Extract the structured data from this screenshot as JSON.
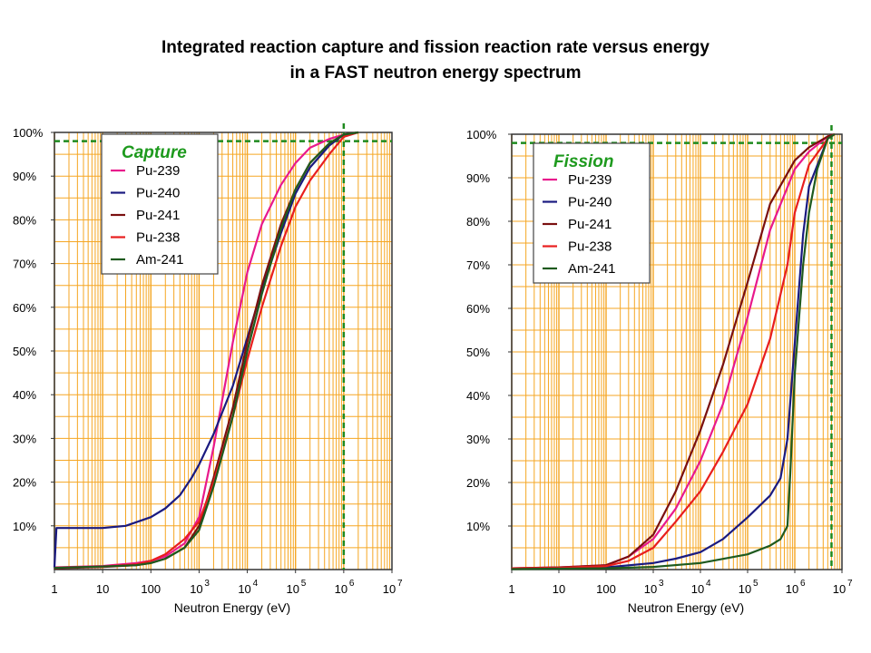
{
  "page": {
    "title_line1": "Integrated reaction capture and fission reaction rate versus energy",
    "title_line2": "in a FAST neutron energy spectrum"
  },
  "colors": {
    "Pu-239": "#e8198c",
    "Pu-240": "#1a1a80",
    "Pu-241": "#7a1010",
    "Pu-238": "#e81e1e",
    "Am-241": "#1e5a1e",
    "grid": "#f5a623",
    "marker": "#1e8a1e"
  },
  "chart_data": [
    {
      "type": "line",
      "legend_title": "Capture",
      "xlabel": "Neutron Energy (eV)",
      "xscale": "log",
      "xlim": [
        1,
        10000000
      ],
      "ylim": [
        0,
        100
      ],
      "yunit": "%",
      "x_tick_labels": [
        "1",
        "10",
        "100",
        "10",
        "10",
        "10",
        "10",
        "10"
      ],
      "x_tick_exponents": [
        "",
        "",
        "",
        "3",
        "4",
        "5",
        "6",
        "7"
      ],
      "y_tick_labels": [
        "10%",
        "20%",
        "30%",
        "40%",
        "50%",
        "60%",
        "70%",
        "80%",
        "90%",
        "100%"
      ],
      "legend_position": "top-left",
      "reference_lines": {
        "y": 98,
        "x": 1000000
      },
      "series": [
        {
          "name": "Pu-239",
          "x": [
            1,
            10,
            50,
            100,
            200,
            500,
            1000,
            2000,
            5000,
            10000,
            20000,
            50000,
            100000,
            200000,
            500000,
            1000000,
            2000000
          ],
          "y": [
            0.5,
            0.8,
            1.5,
            2,
            3,
            6,
            12,
            28,
            52,
            68,
            79,
            88,
            93,
            96.5,
            98.5,
            99.5,
            100
          ]
        },
        {
          "name": "Pu-240",
          "x": [
            1,
            1.1,
            10,
            30,
            100,
            200,
            400,
            700,
            1000,
            2000,
            5000,
            10000,
            20000,
            50000,
            100000,
            200000,
            500000,
            1000000,
            2000000
          ],
          "y": [
            0.5,
            9.5,
            9.5,
            10,
            12,
            14,
            17,
            21,
            24,
            31,
            42,
            53,
            64,
            77,
            86,
            92,
            97,
            99.5,
            100
          ]
        },
        {
          "name": "Pu-241",
          "x": [
            1,
            10,
            50,
            100,
            200,
            500,
            1000,
            2000,
            5000,
            10000,
            20000,
            50000,
            100000,
            200000,
            500000,
            1000000,
            2000000
          ],
          "y": [
            0.3,
            0.6,
            1,
            1.5,
            2.5,
            5,
            10,
            21,
            37,
            52,
            65,
            79,
            87,
            93,
            97.5,
            99.5,
            100
          ]
        },
        {
          "name": "Pu-238",
          "x": [
            1,
            10,
            50,
            100,
            200,
            500,
            1000,
            2000,
            5000,
            10000,
            20000,
            50000,
            100000,
            200000,
            500000,
            1000000,
            2000000
          ],
          "y": [
            0.4,
            0.7,
            1.2,
            2,
            3.5,
            7,
            11,
            20,
            35,
            48,
            60,
            74,
            83,
            89,
            95,
            99,
            100
          ]
        },
        {
          "name": "Am-241",
          "x": [
            1,
            10,
            50,
            100,
            200,
            500,
            1000,
            2000,
            5000,
            10000,
            20000,
            50000,
            100000,
            200000,
            500000,
            1000000,
            2000000
          ],
          "y": [
            0.4,
            0.7,
            1,
            1.5,
            2.5,
            5,
            9,
            19,
            35,
            50,
            63,
            78,
            87,
            93,
            97.5,
            99.5,
            100
          ]
        }
      ]
    },
    {
      "type": "line",
      "legend_title": "Fission",
      "xlabel": "Neutron Energy (eV)",
      "xscale": "log",
      "xlim": [
        1,
        10000000
      ],
      "ylim": [
        0,
        100
      ],
      "yunit": "%",
      "x_tick_labels": [
        "1",
        "10",
        "100",
        "10",
        "10",
        "10",
        "10",
        "10"
      ],
      "x_tick_exponents": [
        "",
        "",
        "",
        "3",
        "4",
        "5",
        "6",
        "7"
      ],
      "y_tick_labels": [
        "10%",
        "20%",
        "30%",
        "40%",
        "50%",
        "60%",
        "70%",
        "80%",
        "90%",
        "100%"
      ],
      "legend_position": "top-left",
      "reference_lines": {
        "y": 98,
        "x": 6000000
      },
      "series": [
        {
          "name": "Pu-239",
          "x": [
            1,
            10,
            100,
            300,
            1000,
            3000,
            10000,
            30000,
            100000,
            300000,
            1000000,
            2000000,
            5000000,
            7000000
          ],
          "y": [
            0.3,
            0.5,
            1,
            3,
            7,
            14,
            25,
            38,
            58,
            78,
            92,
            96,
            99.5,
            100
          ]
        },
        {
          "name": "Pu-240",
          "x": [
            1,
            10,
            100,
            1000,
            3000,
            10000,
            30000,
            100000,
            300000,
            500000,
            700000,
            1000000,
            1500000,
            2000000,
            5000000,
            7000000
          ],
          "y": [
            0.2,
            0.3,
            0.5,
            1.5,
            2.5,
            4,
            7,
            12,
            17,
            21,
            30,
            52,
            77,
            88,
            99,
            100
          ]
        },
        {
          "name": "Pu-241",
          "x": [
            1,
            10,
            100,
            300,
            1000,
            3000,
            10000,
            30000,
            100000,
            300000,
            1000000,
            2000000,
            5000000,
            7000000
          ],
          "y": [
            0.3,
            0.5,
            1,
            3,
            8,
            18,
            32,
            47,
            66,
            84,
            94,
            97,
            99.5,
            100
          ]
        },
        {
          "name": "Pu-238",
          "x": [
            1,
            10,
            100,
            300,
            1000,
            3000,
            10000,
            30000,
            100000,
            300000,
            700000,
            1000000,
            2000000,
            5000000,
            7000000
          ],
          "y": [
            0.3,
            0.4,
            0.8,
            2,
            5,
            11,
            18,
            27,
            38,
            53,
            70,
            82,
            93,
            99,
            100
          ]
        },
        {
          "name": "Am-241",
          "x": [
            1,
            10,
            100,
            1000,
            10000,
            100000,
            300000,
            500000,
            700000,
            800000,
            1000000,
            1500000,
            2000000,
            3000000,
            5000000,
            7000000
          ],
          "y": [
            0.1,
            0.2,
            0.3,
            0.6,
            1.5,
            3.5,
            5.5,
            7,
            10,
            22,
            45,
            70,
            82,
            92,
            99,
            100
          ]
        }
      ]
    }
  ]
}
